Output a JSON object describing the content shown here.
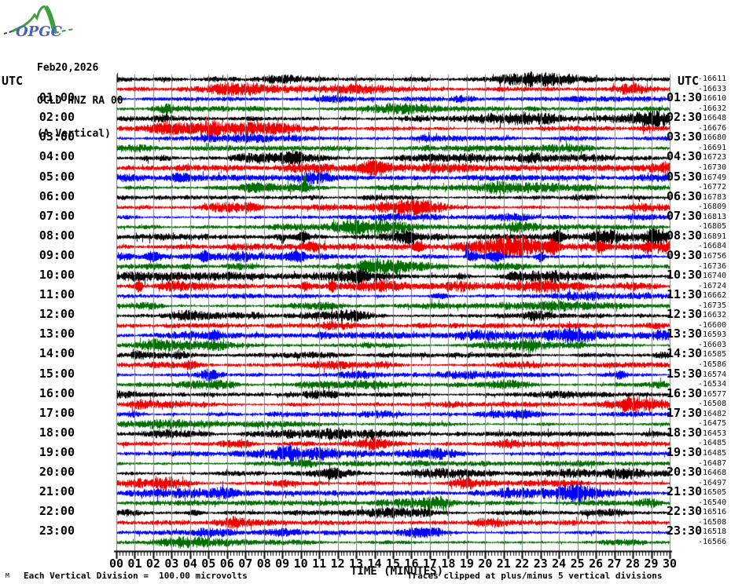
{
  "logo": {
    "text": "OPGC"
  },
  "header": {
    "date": "Feb20,2026",
    "station": "OCLD HNZ RA 00",
    "component": "(A Vertical)"
  },
  "axes": {
    "left_title": "UTC",
    "right_title": "UTC",
    "x_title": "TIME (MINUTES)",
    "x_tick_labels": [
      "00",
      "01",
      "02",
      "03",
      "04",
      "05",
      "06",
      "07",
      "08",
      "09",
      "10",
      "11",
      "12",
      "13",
      "14",
      "15",
      "16",
      "17",
      "18",
      "19",
      "20",
      "21",
      "22",
      "23",
      "24",
      "25",
      "26",
      "27",
      "28",
      "29",
      "30"
    ]
  },
  "footer": {
    "left": "Each Vertical Division =  100.00 microvolts",
    "right": "Traces clipped at plus/minus 5 vertical divisions",
    "corner_glyph": "M"
  },
  "colors": {
    "trace_cycle": [
      "#000000",
      "#ee0000",
      "#0000ff",
      "#006e00"
    ],
    "grid": "#7d7d7d",
    "axis": "#000000",
    "logo_green": "#3f9f3f",
    "logo_blue": "#4a62b8"
  },
  "chart_data": {
    "type": "line",
    "subtype": "helicorder_seismogram",
    "title": "OCLD HNZ RA 00 (A Vertical) Feb20,2026",
    "x_range_minutes": [
      0,
      30
    ],
    "row_duration_minutes": 30,
    "rows_per_day": 48,
    "ylabel_note": "Each vertical division = 100.00 microvolts, clipped at +/-5 divisions",
    "rows": [
      {
        "left_label": "",
        "right_label": "",
        "value": "-16611"
      },
      {
        "left_label": "",
        "right_label": "",
        "value": "-16633"
      },
      {
        "left_label": "01:00",
        "right_label": "01:30",
        "value": "-16610"
      },
      {
        "left_label": "",
        "right_label": "",
        "value": "-16632"
      },
      {
        "left_label": "02:00",
        "right_label": "02:30",
        "value": "-16648"
      },
      {
        "left_label": "",
        "right_label": "",
        "value": "-16676"
      },
      {
        "left_label": "03:00",
        "right_label": "03:30",
        "value": "-16680"
      },
      {
        "left_label": "",
        "right_label": "",
        "value": "-16691"
      },
      {
        "left_label": "04:00",
        "right_label": "04:30",
        "value": "-16723"
      },
      {
        "left_label": "",
        "right_label": "",
        "value": "-16730"
      },
      {
        "left_label": "05:00",
        "right_label": "05:30",
        "value": "-16749"
      },
      {
        "left_label": "",
        "right_label": "",
        "value": "-16772"
      },
      {
        "left_label": "06:00",
        "right_label": "06:30",
        "value": "-16783"
      },
      {
        "left_label": "",
        "right_label": "",
        "value": "-16809"
      },
      {
        "left_label": "07:00",
        "right_label": "07:30",
        "value": "-16813"
      },
      {
        "left_label": "",
        "right_label": "",
        "value": "-16805"
      },
      {
        "left_label": "08:00",
        "right_label": "08:30",
        "value": "-16891"
      },
      {
        "left_label": "",
        "right_label": "",
        "value": "-16684"
      },
      {
        "left_label": "09:00",
        "right_label": "09:30",
        "value": "-16756"
      },
      {
        "left_label": "",
        "right_label": "",
        "value": "-16736"
      },
      {
        "left_label": "10:00",
        "right_label": "10:30",
        "value": "-16740"
      },
      {
        "left_label": "",
        "right_label": "",
        "value": "-16724"
      },
      {
        "left_label": "11:00",
        "right_label": "11:30",
        "value": "-16662"
      },
      {
        "left_label": "",
        "right_label": "",
        "value": "-16735"
      },
      {
        "left_label": "12:00",
        "right_label": "12:30",
        "value": "-16632"
      },
      {
        "left_label": "",
        "right_label": "",
        "value": "-16600"
      },
      {
        "left_label": "13:00",
        "right_label": "13:30",
        "value": "-16593"
      },
      {
        "left_label": "",
        "right_label": "",
        "value": "-16603"
      },
      {
        "left_label": "14:00",
        "right_label": "14:30",
        "value": "-16585"
      },
      {
        "left_label": "",
        "right_label": "",
        "value": "-16586"
      },
      {
        "left_label": "15:00",
        "right_label": "15:30",
        "value": "-16574"
      },
      {
        "left_label": "",
        "right_label": "",
        "value": "-16534"
      },
      {
        "left_label": "16:00",
        "right_label": "16:30",
        "value": "-16577"
      },
      {
        "left_label": "",
        "right_label": "",
        "value": "-16508"
      },
      {
        "left_label": "17:00",
        "right_label": "17:30",
        "value": "-16482"
      },
      {
        "left_label": "",
        "right_label": "",
        "value": "-16475"
      },
      {
        "left_label": "18:00",
        "right_label": "18:30",
        "value": "-16453"
      },
      {
        "left_label": "",
        "right_label": "",
        "value": "-16485"
      },
      {
        "left_label": "19:00",
        "right_label": "19:30",
        "value": "-16485"
      },
      {
        "left_label": "",
        "right_label": "",
        "value": "-16487"
      },
      {
        "left_label": "20:00",
        "right_label": "20:30",
        "value": "-16468"
      },
      {
        "left_label": "",
        "right_label": "",
        "value": "-16497"
      },
      {
        "left_label": "21:00",
        "right_label": "21:30",
        "value": "-16505"
      },
      {
        "left_label": "",
        "right_label": "",
        "value": "-16540"
      },
      {
        "left_label": "22:00",
        "right_label": "22:30",
        "value": "-16516"
      },
      {
        "left_label": "",
        "right_label": "",
        "value": "-16508"
      },
      {
        "left_label": "23:00",
        "right_label": "23:30",
        "value": "-16518"
      },
      {
        "left_label": "",
        "right_label": "",
        "value": "-16566"
      }
    ],
    "row_noise_scale": {
      "8": 1.15,
      "9": 1.15,
      "10": 1.1,
      "11": 1.1,
      "16": 1.35,
      "17": 1.3,
      "18": 1.3,
      "19": 1.2,
      "20": 1.15,
      "21": 1.25
    },
    "events": [
      {
        "row": 2,
        "m": 25.0,
        "amp": 3,
        "w": 4,
        "dir": "both"
      },
      {
        "row": 5,
        "m": 3.0,
        "amp": 3,
        "w": 5,
        "dir": "both"
      },
      {
        "row": 8,
        "m": 9.6,
        "amp": 4,
        "w": 3,
        "dir": "both"
      },
      {
        "row": 9,
        "m": 14.0,
        "amp": 3,
        "w": 4,
        "dir": "both"
      },
      {
        "row": 10,
        "m": 3.5,
        "amp": 4,
        "w": 3,
        "dir": "both"
      },
      {
        "row": 11,
        "m": 7.6,
        "amp": 5,
        "w": 5,
        "dir": "both"
      },
      {
        "row": 11,
        "m": 10.2,
        "amp": 17,
        "w": 0.5,
        "dir": "up"
      },
      {
        "row": 11,
        "m": 10.2,
        "amp": 5,
        "w": 1.5,
        "dir": "both"
      },
      {
        "row": 13,
        "m": 7.4,
        "amp": 4,
        "w": 3,
        "dir": "both"
      },
      {
        "row": 16,
        "m": 9.0,
        "amp": 10,
        "w": 0.6,
        "dir": "down"
      },
      {
        "row": 16,
        "m": 10.1,
        "amp": 7,
        "w": 2,
        "dir": "both"
      },
      {
        "row": 16,
        "m": 15.9,
        "amp": 6,
        "w": 2.5,
        "dir": "both"
      },
      {
        "row": 16,
        "m": 23.9,
        "amp": 8,
        "w": 2,
        "dir": "both"
      },
      {
        "row": 16,
        "m": 27.1,
        "amp": 8,
        "w": 0.5,
        "dir": "down"
      },
      {
        "row": 17,
        "m": 10.5,
        "amp": 5,
        "w": 2.5,
        "dir": "both"
      },
      {
        "row": 17,
        "m": 16.4,
        "amp": 7,
        "w": 1.5,
        "dir": "both"
      },
      {
        "row": 17,
        "m": 23.6,
        "amp": 7,
        "w": 2,
        "dir": "both"
      },
      {
        "row": 17,
        "m": 26.2,
        "amp": 6,
        "w": 2,
        "dir": "both"
      },
      {
        "row": 17,
        "m": 28.8,
        "amp": 6,
        "w": 1.5,
        "dir": "both"
      },
      {
        "row": 18,
        "m": 2.0,
        "amp": 5,
        "w": 2.5,
        "dir": "both"
      },
      {
        "row": 18,
        "m": 4.8,
        "amp": 6,
        "w": 2,
        "dir": "both"
      },
      {
        "row": 18,
        "m": 9.7,
        "amp": 6,
        "w": 3,
        "dir": "both"
      },
      {
        "row": 18,
        "m": 19.0,
        "amp": 25,
        "w": 0.4,
        "dir": "up"
      },
      {
        "row": 18,
        "m": 19.3,
        "amp": 7,
        "w": 2,
        "dir": "both"
      },
      {
        "row": 18,
        "m": 20.5,
        "amp": 6,
        "w": 3,
        "dir": "both"
      },
      {
        "row": 18,
        "m": 23.0,
        "amp": 7,
        "w": 1.2,
        "dir": "both"
      },
      {
        "row": 19,
        "m": 13.5,
        "amp": 4,
        "w": 3,
        "dir": "both"
      },
      {
        "row": 20,
        "m": 13.2,
        "amp": 5,
        "w": 2,
        "dir": "both"
      },
      {
        "row": 20,
        "m": 21.5,
        "amp": 4,
        "w": 2.5,
        "dir": "both"
      },
      {
        "row": 21,
        "m": 1.2,
        "amp": 9,
        "w": 1.2,
        "dir": "both"
      },
      {
        "row": 21,
        "m": 10.2,
        "amp": 5,
        "w": 2,
        "dir": "both"
      },
      {
        "row": 21,
        "m": 11.7,
        "amp": 8,
        "w": 1,
        "dir": "both"
      },
      {
        "row": 21,
        "m": 25.0,
        "amp": 5,
        "w": 2,
        "dir": "both"
      },
      {
        "row": 22,
        "m": 17.5,
        "amp": 4,
        "w": 3,
        "dir": "both"
      },
      {
        "row": 26,
        "m": 5.3,
        "amp": 5,
        "w": 2,
        "dir": "both"
      },
      {
        "row": 29,
        "m": 4.0,
        "amp": 4,
        "w": 2.5,
        "dir": "both"
      },
      {
        "row": 30,
        "m": 27.3,
        "amp": 4,
        "w": 2,
        "dir": "both"
      },
      {
        "row": 34,
        "m": 22.0,
        "amp": 4,
        "w": 2.5,
        "dir": "both"
      },
      {
        "row": 44,
        "m": 4.2,
        "amp": 4,
        "w": 2.5,
        "dir": "both"
      }
    ]
  }
}
